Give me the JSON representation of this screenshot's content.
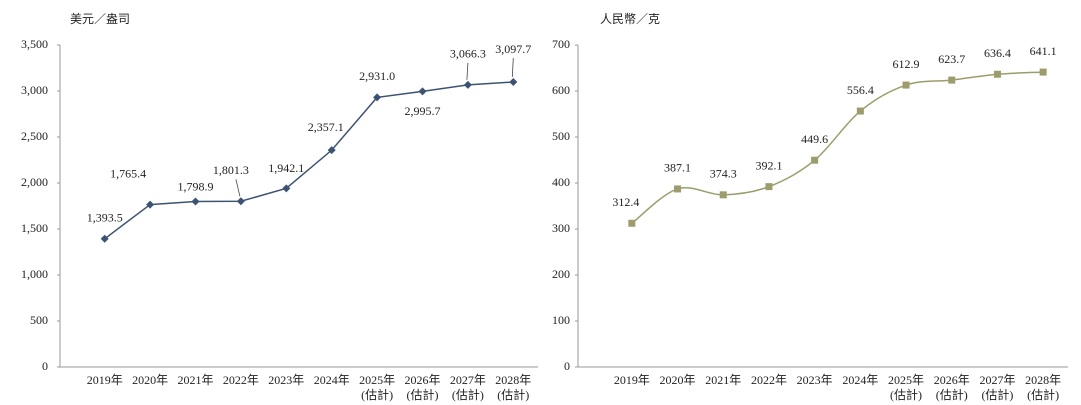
{
  "chart_data": [
    {
      "type": "line",
      "title": "美元／盎司",
      "categories": [
        "2019年",
        "2020年",
        "2021年",
        "2022年",
        "2023年",
        "2024年",
        "2025年\n(估計)",
        "2026年\n(估計)",
        "2027年\n(估計)",
        "2028年\n(估計)"
      ],
      "series": [
        {
          "name": "美元／盎司",
          "color": "#3d5373",
          "marker": "diamond",
          "smooth": false,
          "values": [
            1393.5,
            1765.4,
            1798.9,
            1801.3,
            1942.1,
            2357.1,
            2931.0,
            2995.7,
            3066.3,
            3097.7
          ],
          "value_labels": [
            "1,393.5",
            "1,765.4",
            "1,798.9",
            "1,801.3",
            "1,942.1",
            "2,357.1",
            "2,931.0",
            "2,995.7",
            "3,066.3",
            "3,097.7"
          ]
        }
      ],
      "ylim": [
        0,
        3500
      ],
      "yticks": [
        0,
        500,
        {
          "value": 1000,
          "label": "1,000"
        },
        {
          "value": 1500,
          "label": "1,500"
        },
        {
          "value": 2000,
          "label": "2,000"
        },
        {
          "value": 2500,
          "label": "2,500"
        },
        {
          "value": 3000,
          "label": "3,000"
        },
        {
          "value": 3500,
          "label": "3,500"
        }
      ]
    },
    {
      "type": "line",
      "title": "人民幣／克",
      "categories": [
        "2019年",
        "2020年",
        "2021年",
        "2022年",
        "2023年",
        "2024年",
        "2025年\n(估計)",
        "2026年\n(估計)",
        "2027年\n(估計)",
        "2028年\n(估計)"
      ],
      "series": [
        {
          "name": "人民幣／克",
          "color": "#9c9c6c",
          "marker": "square",
          "smooth": true,
          "values": [
            312.4,
            387.1,
            374.3,
            392.1,
            449.6,
            556.4,
            612.9,
            623.7,
            636.4,
            641.1
          ]
        }
      ],
      "ylim": [
        0,
        700
      ],
      "yticks": [
        0,
        100,
        200,
        300,
        400,
        500,
        600,
        700
      ]
    }
  ]
}
